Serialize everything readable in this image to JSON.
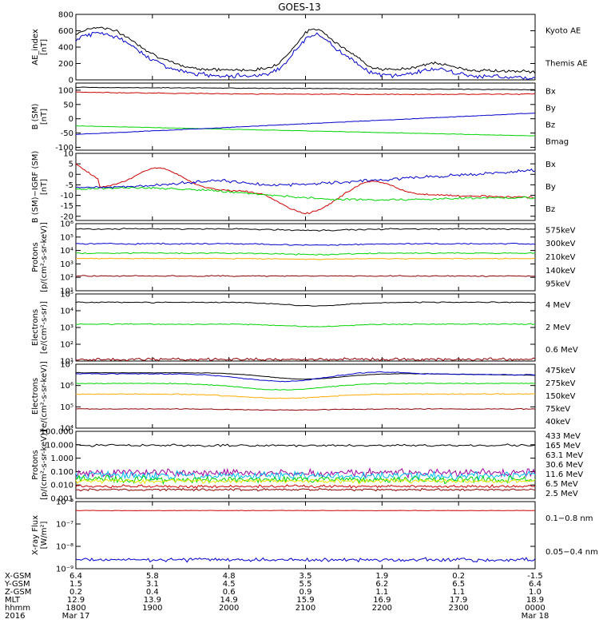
{
  "title": "GOES-13",
  "colors": {
    "black": "#000000",
    "red": "#cc0000",
    "green": "#00d400",
    "blue": "#0000cc",
    "orange": "#ffaa00",
    "yellow": "#e6e600",
    "cyan": "#00bbee",
    "purple": "#a000a0",
    "darkred": "#8b0000"
  },
  "chart_data": [
    {
      "type": "line",
      "ylabel": "AE_index\n[nT]",
      "yscale": "linear",
      "ylim": [
        0,
        800
      ],
      "yticks": [
        "0",
        "200",
        "400",
        "600",
        "800"
      ],
      "series": [
        {
          "name": "Kyoto AE",
          "color": "blue"
        },
        {
          "name": "Themis AE",
          "color": "black"
        }
      ]
    },
    {
      "type": "line",
      "ylabel": "B (SM)\n[nT]",
      "yscale": "linear",
      "ylim": [
        -110,
        125
      ],
      "yticks": [
        "-100",
        "-50",
        "0",
        "50",
        "100"
      ],
      "series": [
        {
          "name": "Bx",
          "color": "blue"
        },
        {
          "name": "By",
          "color": "green"
        },
        {
          "name": "Bz",
          "color": "red"
        },
        {
          "name": "Bmag",
          "color": "black"
        }
      ]
    },
    {
      "type": "line",
      "ylabel": "B (SM)−IGRF (SM)\n[nT]",
      "yscale": "linear",
      "ylim": [
        -22,
        10
      ],
      "yticks": [
        "-20",
        "-15",
        "-10",
        "-5",
        "0",
        "5",
        "10"
      ],
      "series": [
        {
          "name": "Bx",
          "color": "blue"
        },
        {
          "name": "By",
          "color": "green"
        },
        {
          "name": "Bz",
          "color": "red"
        }
      ]
    },
    {
      "type": "line",
      "ylabel": "Protons\n[p/(cm²-s-sr-keV)]",
      "yscale": "log",
      "ylim_exp": [
        1,
        6
      ],
      "yticks": [
        "10¹",
        "10²",
        "10³",
        "10⁴",
        "10⁵",
        "10⁶"
      ],
      "series": [
        {
          "name": "575keV",
          "color": "darkred"
        },
        {
          "name": "300keV",
          "color": "orange"
        },
        {
          "name": "210keV",
          "color": "green"
        },
        {
          "name": "140keV",
          "color": "blue"
        },
        {
          "name": "95keV",
          "color": "black"
        }
      ]
    },
    {
      "type": "line",
      "ylabel": "Electrons\n[e/(cm²-s-sr)]",
      "yscale": "log",
      "ylim_exp": [
        1,
        5
      ],
      "yticks": [
        "10¹",
        "10²",
        "10³",
        "10⁴",
        "10⁵"
      ],
      "series": [
        {
          "name": "4 MeV",
          "color": "darkred"
        },
        {
          "name": "2 MeV",
          "color": "green"
        },
        {
          "name": "0.6 MeV",
          "color": "black"
        }
      ]
    },
    {
      "type": "line",
      "ylabel": "Electrons\n[e/(cm²-s-sr-keV)]",
      "yscale": "log",
      "ylim_exp": [
        4,
        7
      ],
      "yticks": [
        "10⁴",
        "10⁵",
        "10⁶",
        "10⁷"
      ],
      "series": [
        {
          "name": "475keV",
          "color": "darkred"
        },
        {
          "name": "275keV",
          "color": "orange"
        },
        {
          "name": "150keV",
          "color": "green"
        },
        {
          "name": "75keV",
          "color": "blue"
        },
        {
          "name": "40keV",
          "color": "black"
        }
      ]
    },
    {
      "type": "line",
      "ylabel": "Protons\n[p/(cm²-s-sr-keV)]",
      "yscale": "log",
      "ylim_exp": [
        -3,
        2
      ],
      "yticks": [
        "0.001",
        "0.010",
        "0.100",
        "1.000",
        "10.000",
        "100.000"
      ],
      "series": [
        {
          "name": "433 MeV",
          "color": "darkred"
        },
        {
          "name": "165 MeV",
          "color": "red"
        },
        {
          "name": "63.1 MeV",
          "color": "yellow"
        },
        {
          "name": "30.6 MeV",
          "color": "green"
        },
        {
          "name": "11.6 MeV",
          "color": "cyan"
        },
        {
          "name": "6.5 MeV",
          "color": "purple"
        },
        {
          "name": "2.5 MeV",
          "color": "black"
        }
      ]
    },
    {
      "type": "line",
      "ylabel": "X-ray Flux\n[W/m²]",
      "yscale": "log",
      "ylim_exp": [
        -9,
        -6
      ],
      "yticks": [
        "10⁻⁹",
        "10⁻⁸",
        "10⁻⁷",
        "10⁻⁶"
      ],
      "series": [
        {
          "name": "0.1−0.8 nm",
          "color": "red"
        },
        {
          "name": "0.05−0.4 nm",
          "color": "blue"
        }
      ]
    }
  ],
  "xaxis": {
    "row_labels": [
      "X-GSM",
      "Y-GSM",
      "Z-GSM",
      "MLT",
      "hhmm",
      "2016"
    ],
    "columns": [
      [
        "6.4",
        "1.5",
        "0.2",
        "12.9",
        "1800",
        "Mar 17"
      ],
      [
        "5.8",
        "3.1",
        "0.4",
        "13.9",
        "1900",
        ""
      ],
      [
        "4.8",
        "4.5",
        "0.6",
        "14.9",
        "2000",
        ""
      ],
      [
        "3.5",
        "5.5",
        "0.9",
        "15.9",
        "2100",
        ""
      ],
      [
        "1.9",
        "6.2",
        "1.1",
        "16.9",
        "2200",
        ""
      ],
      [
        "0.2",
        "6.5",
        "1.1",
        "17.9",
        "2300",
        ""
      ],
      [
        "-1.5",
        "6.4",
        "1.0",
        "18.9",
        "0000",
        "Mar 18"
      ]
    ]
  }
}
